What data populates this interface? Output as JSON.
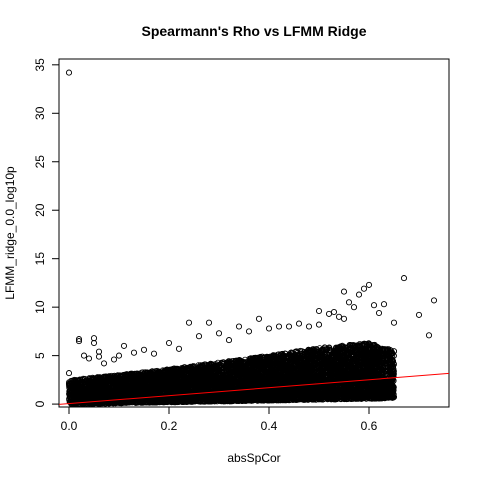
{
  "chart_data": {
    "type": "scatter",
    "title": "Spearmann's Rho vs LFMM Ridge",
    "xlabel": "absSpCor",
    "ylabel": "LFMM_ridge_0.0_log10p",
    "xlim": [
      -0.02,
      0.76
    ],
    "ylim": [
      -0.3,
      35.6
    ],
    "x_ticks": [
      0.0,
      0.2,
      0.4,
      0.6
    ],
    "x_tick_labels": [
      "0.0",
      "0.2",
      "0.4",
      "0.6"
    ],
    "y_ticks": [
      0,
      5,
      10,
      15,
      20,
      25,
      30,
      35
    ],
    "y_tick_labels": [
      "0",
      "5",
      "10",
      "15",
      "20",
      "25",
      "30",
      "35"
    ],
    "grid": false,
    "legend": "none",
    "marker": "open-circle",
    "point_color": "#000000",
    "fit_line": {
      "intercept": 0.05,
      "slope": 4.1,
      "color": "#ff0000"
    },
    "series": [
      {
        "x": [
          0.0,
          0.0,
          0.0,
          0.02,
          0.02,
          0.03,
          0.04,
          0.05,
          0.05,
          0.06,
          0.06,
          0.07,
          0.09,
          0.1,
          0.11,
          0.13,
          0.15,
          0.17,
          0.2,
          0.22,
          0.24,
          0.26,
          0.28,
          0.3,
          0.32,
          0.34,
          0.36,
          0.38,
          0.4,
          0.42,
          0.44,
          0.46,
          0.48,
          0.5,
          0.5,
          0.52,
          0.53,
          0.54,
          0.55,
          0.55,
          0.56,
          0.57,
          0.58,
          0.59,
          0.6,
          0.61,
          0.62,
          0.63,
          0.65,
          0.67,
          0.7,
          0.72,
          0.73
        ],
        "y": [
          34.2,
          3.2,
          2.1,
          6.7,
          6.5,
          5.0,
          4.7,
          6.8,
          6.3,
          5.4,
          4.9,
          4.2,
          4.6,
          5.0,
          6.0,
          5.3,
          5.6,
          5.2,
          6.3,
          5.7,
          8.4,
          7.0,
          8.4,
          7.3,
          6.6,
          8.0,
          7.5,
          8.8,
          7.8,
          8.0,
          8.0,
          8.3,
          8.0,
          9.6,
          8.2,
          9.3,
          9.5,
          9.0,
          11.6,
          8.8,
          10.5,
          10.0,
          11.3,
          11.9,
          12.3,
          10.2,
          9.4,
          10.3,
          8.4,
          13.0,
          9.2,
          7.1,
          10.7
        ]
      }
    ],
    "dense_cloud": {
      "x_range": [
        0.0,
        0.65
      ],
      "lower_y_at": [
        [
          0.0,
          0.0
        ],
        [
          0.65,
          0.6
        ]
      ],
      "upper_y_at": [
        [
          0.0,
          2.5
        ],
        [
          0.1,
          3.0
        ],
        [
          0.2,
          3.6
        ],
        [
          0.3,
          4.3
        ],
        [
          0.4,
          5.0
        ],
        [
          0.5,
          5.8
        ],
        [
          0.6,
          6.3
        ],
        [
          0.65,
          5.5
        ]
      ],
      "point_count": 9000
    }
  }
}
